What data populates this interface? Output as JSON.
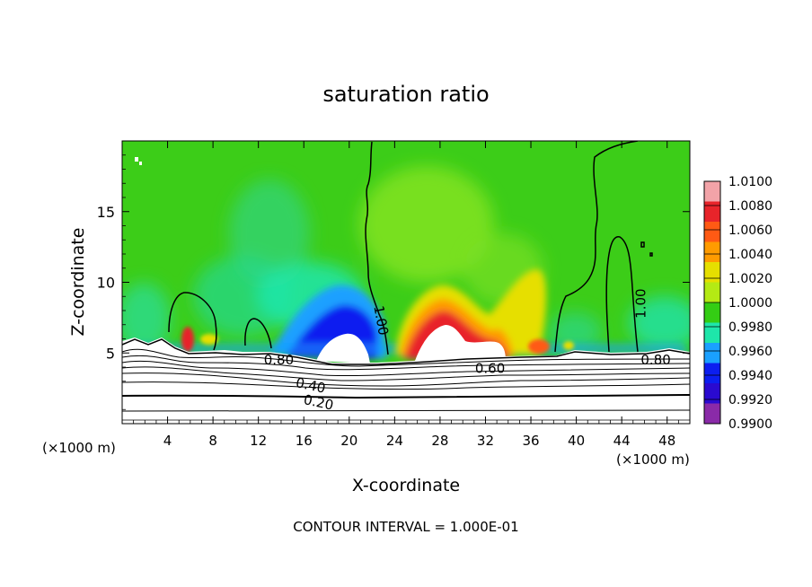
{
  "chart_data": {
    "type": "heatmap",
    "title": "saturation ratio",
    "xlabel": "X-coordinate",
    "ylabel": "Z-coordinate",
    "x_scale_note_left": "(×1000 m)",
    "x_scale_note_right": "(×1000 m)",
    "xlim": [
      0,
      50
    ],
    "ylim": [
      0,
      20
    ],
    "x_ticks": [
      4,
      8,
      12,
      16,
      20,
      24,
      28,
      32,
      36,
      40,
      44,
      48
    ],
    "y_ticks": [
      5,
      10,
      15
    ],
    "colorbar": {
      "levels": [
        "1.0100",
        "1.0080",
        "1.0060",
        "1.0040",
        "1.0020",
        "1.0000",
        "0.9980",
        "0.9960",
        "0.9940",
        "0.9920",
        "0.9900"
      ],
      "colors": [
        "#f2a3a8",
        "#e8242a",
        "#ff5a14",
        "#ff9b00",
        "#e6df00",
        "#b4ea14",
        "#34cd14",
        "#1ee6aa",
        "#1aa0ff",
        "#0c1ef0",
        "#2a0ad0",
        "#8a2aa8"
      ]
    },
    "contour_labels": [
      {
        "text": "1.00",
        "x": 22.8,
        "z": 7.3,
        "rotate": 80
      },
      {
        "text": "1.00",
        "x": 45.7,
        "z": 8.5,
        "rotate": -90
      },
      {
        "text": "0.80",
        "x": 13.8,
        "z": 4.5,
        "rotate": 0
      },
      {
        "text": "0.60",
        "x": 32.4,
        "z": 3.9,
        "rotate": 0
      },
      {
        "text": "0.80",
        "x": 47.0,
        "z": 4.5,
        "rotate": 0
      },
      {
        "text": "0.40",
        "x": 16.6,
        "z": 2.7,
        "rotate": 12
      },
      {
        "text": "0.20",
        "x": 17.3,
        "z": 1.5,
        "rotate": 12
      }
    ],
    "annotation": "CONTOUR INTERVAL = 1.000E-01"
  }
}
